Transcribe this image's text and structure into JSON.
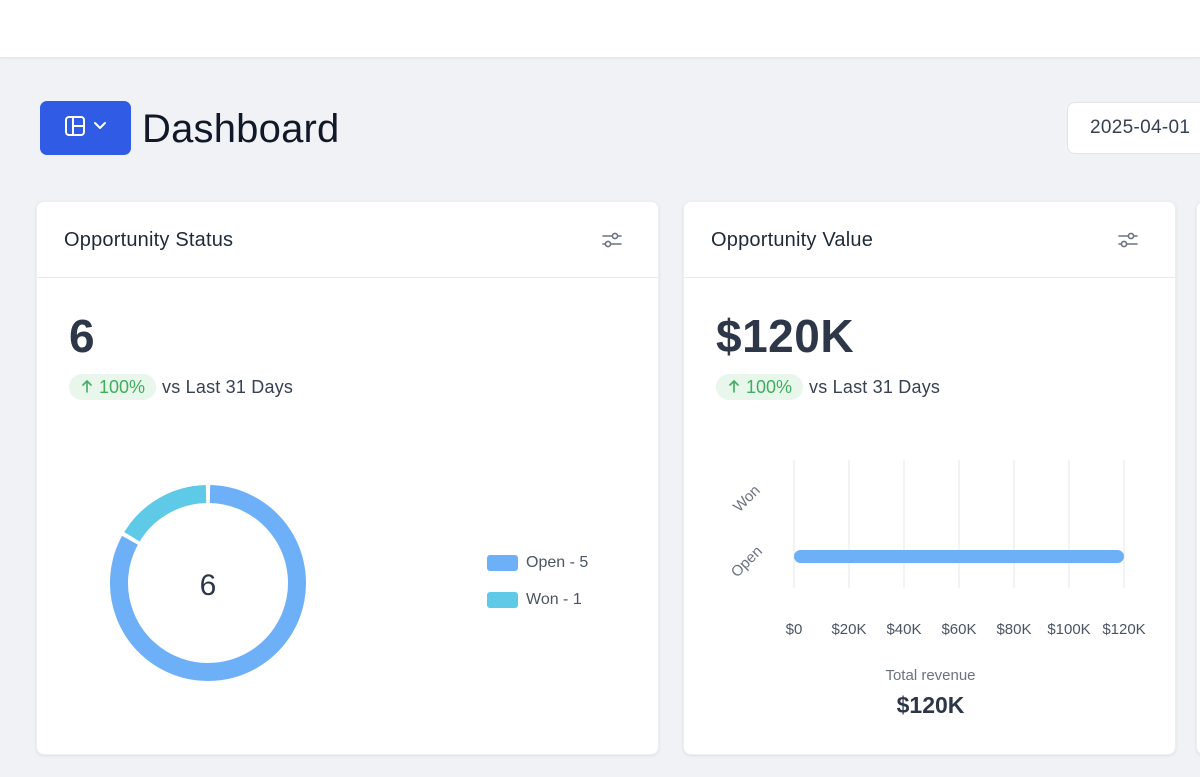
{
  "header": {
    "title": "Dashboard",
    "date_value": "2025-04-01"
  },
  "icons": {
    "layout": "layout-grid-icon",
    "chevron": "chevron-down-icon",
    "filter": "filter-sliders-icon",
    "arrow_up": "arrow-up-icon"
  },
  "colors": {
    "primary": "#2f5be5",
    "open": "#6eb0f7",
    "won": "#5fc9e8",
    "positive": "#3fae5d"
  },
  "cards": {
    "status": {
      "title": "Opportunity Status",
      "total": "6",
      "change": "100%",
      "change_suffix": "vs Last 31 Days",
      "donut_center": "6",
      "legend": [
        "Open - 5",
        "Won - 1"
      ]
    },
    "value": {
      "title": "Opportunity Value",
      "total": "$120K",
      "change": "100%",
      "change_suffix": "vs Last 31 Days",
      "total_label": "Total revenue",
      "total_value": "$120K"
    }
  },
  "chart_data": [
    {
      "type": "pie",
      "categories": [
        "Open",
        "Won"
      ],
      "values": [
        5,
        1
      ],
      "colors": [
        "#6eb0f7",
        "#5fc9e8"
      ],
      "legend": "right"
    },
    {
      "type": "bar",
      "orientation": "horizontal",
      "categories": [
        "Won",
        "Open"
      ],
      "values": [
        0,
        120000
      ],
      "x_ticks": [
        "$0",
        "$20K",
        "$40K",
        "$60K",
        "$80K",
        "$100K",
        "$120K"
      ],
      "xlim": [
        0,
        120000
      ],
      "grid": true,
      "color": "#6eb0f7"
    }
  ]
}
